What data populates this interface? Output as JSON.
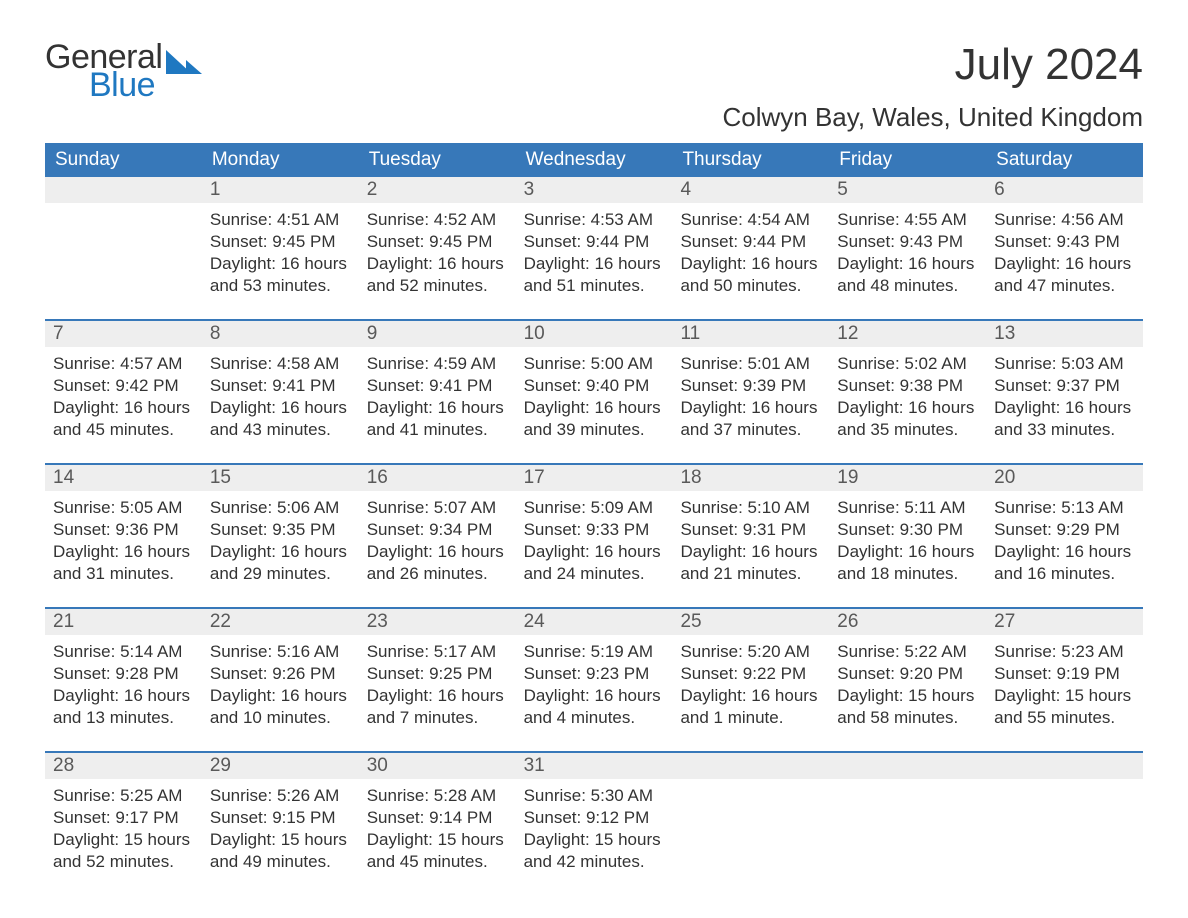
{
  "logo": {
    "text_general": "General",
    "text_blue": "Blue",
    "mark_color": "#1f78c1"
  },
  "title": "July 2024",
  "location": "Colwyn Bay, Wales, United Kingdom",
  "colors": {
    "header_bg": "#3778b9",
    "header_text": "#ffffff",
    "daynum_bg": "#eeeeee",
    "daynum_text": "#595959",
    "body_text": "#333333",
    "rule": "#3778b9",
    "brand_blue": "#1f78c1"
  },
  "typography": {
    "title_fontsize": 44,
    "location_fontsize": 26,
    "header_fontsize": 19,
    "daynum_fontsize": 19,
    "body_fontsize": 17
  },
  "day_headers": [
    "Sunday",
    "Monday",
    "Tuesday",
    "Wednesday",
    "Thursday",
    "Friday",
    "Saturday"
  ],
  "weeks": [
    [
      {
        "blank": true
      },
      {
        "n": "1",
        "sunrise": "4:51 AM",
        "sunset": "9:45 PM",
        "daylight1": "Daylight: 16 hours",
        "daylight2": "and 53 minutes."
      },
      {
        "n": "2",
        "sunrise": "4:52 AM",
        "sunset": "9:45 PM",
        "daylight1": "Daylight: 16 hours",
        "daylight2": "and 52 minutes."
      },
      {
        "n": "3",
        "sunrise": "4:53 AM",
        "sunset": "9:44 PM",
        "daylight1": "Daylight: 16 hours",
        "daylight2": "and 51 minutes."
      },
      {
        "n": "4",
        "sunrise": "4:54 AM",
        "sunset": "9:44 PM",
        "daylight1": "Daylight: 16 hours",
        "daylight2": "and 50 minutes."
      },
      {
        "n": "5",
        "sunrise": "4:55 AM",
        "sunset": "9:43 PM",
        "daylight1": "Daylight: 16 hours",
        "daylight2": "and 48 minutes."
      },
      {
        "n": "6",
        "sunrise": "4:56 AM",
        "sunset": "9:43 PM",
        "daylight1": "Daylight: 16 hours",
        "daylight2": "and 47 minutes."
      }
    ],
    [
      {
        "n": "7",
        "sunrise": "4:57 AM",
        "sunset": "9:42 PM",
        "daylight1": "Daylight: 16 hours",
        "daylight2": "and 45 minutes."
      },
      {
        "n": "8",
        "sunrise": "4:58 AM",
        "sunset": "9:41 PM",
        "daylight1": "Daylight: 16 hours",
        "daylight2": "and 43 minutes."
      },
      {
        "n": "9",
        "sunrise": "4:59 AM",
        "sunset": "9:41 PM",
        "daylight1": "Daylight: 16 hours",
        "daylight2": "and 41 minutes."
      },
      {
        "n": "10",
        "sunrise": "5:00 AM",
        "sunset": "9:40 PM",
        "daylight1": "Daylight: 16 hours",
        "daylight2": "and 39 minutes."
      },
      {
        "n": "11",
        "sunrise": "5:01 AM",
        "sunset": "9:39 PM",
        "daylight1": "Daylight: 16 hours",
        "daylight2": "and 37 minutes."
      },
      {
        "n": "12",
        "sunrise": "5:02 AM",
        "sunset": "9:38 PM",
        "daylight1": "Daylight: 16 hours",
        "daylight2": "and 35 minutes."
      },
      {
        "n": "13",
        "sunrise": "5:03 AM",
        "sunset": "9:37 PM",
        "daylight1": "Daylight: 16 hours",
        "daylight2": "and 33 minutes."
      }
    ],
    [
      {
        "n": "14",
        "sunrise": "5:05 AM",
        "sunset": "9:36 PM",
        "daylight1": "Daylight: 16 hours",
        "daylight2": "and 31 minutes."
      },
      {
        "n": "15",
        "sunrise": "5:06 AM",
        "sunset": "9:35 PM",
        "daylight1": "Daylight: 16 hours",
        "daylight2": "and 29 minutes."
      },
      {
        "n": "16",
        "sunrise": "5:07 AM",
        "sunset": "9:34 PM",
        "daylight1": "Daylight: 16 hours",
        "daylight2": "and 26 minutes."
      },
      {
        "n": "17",
        "sunrise": "5:09 AM",
        "sunset": "9:33 PM",
        "daylight1": "Daylight: 16 hours",
        "daylight2": "and 24 minutes."
      },
      {
        "n": "18",
        "sunrise": "5:10 AM",
        "sunset": "9:31 PM",
        "daylight1": "Daylight: 16 hours",
        "daylight2": "and 21 minutes."
      },
      {
        "n": "19",
        "sunrise": "5:11 AM",
        "sunset": "9:30 PM",
        "daylight1": "Daylight: 16 hours",
        "daylight2": "and 18 minutes."
      },
      {
        "n": "20",
        "sunrise": "5:13 AM",
        "sunset": "9:29 PM",
        "daylight1": "Daylight: 16 hours",
        "daylight2": "and 16 minutes."
      }
    ],
    [
      {
        "n": "21",
        "sunrise": "5:14 AM",
        "sunset": "9:28 PM",
        "daylight1": "Daylight: 16 hours",
        "daylight2": "and 13 minutes."
      },
      {
        "n": "22",
        "sunrise": "5:16 AM",
        "sunset": "9:26 PM",
        "daylight1": "Daylight: 16 hours",
        "daylight2": "and 10 minutes."
      },
      {
        "n": "23",
        "sunrise": "5:17 AM",
        "sunset": "9:25 PM",
        "daylight1": "Daylight: 16 hours",
        "daylight2": "and 7 minutes."
      },
      {
        "n": "24",
        "sunrise": "5:19 AM",
        "sunset": "9:23 PM",
        "daylight1": "Daylight: 16 hours",
        "daylight2": "and 4 minutes."
      },
      {
        "n": "25",
        "sunrise": "5:20 AM",
        "sunset": "9:22 PM",
        "daylight1": "Daylight: 16 hours",
        "daylight2": "and 1 minute."
      },
      {
        "n": "26",
        "sunrise": "5:22 AM",
        "sunset": "9:20 PM",
        "daylight1": "Daylight: 15 hours",
        "daylight2": "and 58 minutes."
      },
      {
        "n": "27",
        "sunrise": "5:23 AM",
        "sunset": "9:19 PM",
        "daylight1": "Daylight: 15 hours",
        "daylight2": "and 55 minutes."
      }
    ],
    [
      {
        "n": "28",
        "sunrise": "5:25 AM",
        "sunset": "9:17 PM",
        "daylight1": "Daylight: 15 hours",
        "daylight2": "and 52 minutes."
      },
      {
        "n": "29",
        "sunrise": "5:26 AM",
        "sunset": "9:15 PM",
        "daylight1": "Daylight: 15 hours",
        "daylight2": "and 49 minutes."
      },
      {
        "n": "30",
        "sunrise": "5:28 AM",
        "sunset": "9:14 PM",
        "daylight1": "Daylight: 15 hours",
        "daylight2": "and 45 minutes."
      },
      {
        "n": "31",
        "sunrise": "5:30 AM",
        "sunset": "9:12 PM",
        "daylight1": "Daylight: 15 hours",
        "daylight2": "and 42 minutes."
      },
      {
        "blank": true
      },
      {
        "blank": true
      },
      {
        "blank": true
      }
    ]
  ],
  "labels": {
    "sunrise_prefix": "Sunrise: ",
    "sunset_prefix": "Sunset: "
  }
}
